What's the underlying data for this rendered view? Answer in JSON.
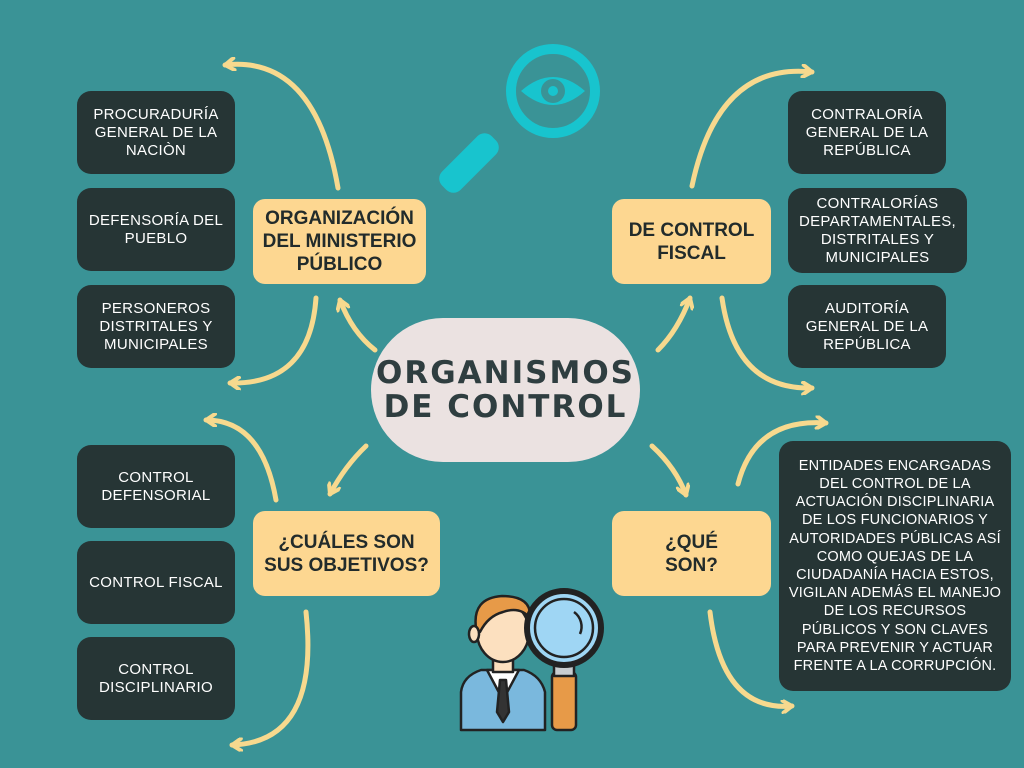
{
  "center": {
    "title": "ORGANISMOS\nDE CONTROL"
  },
  "branches": {
    "ministerio": "ORGANIZACIÓN\nDEL MINISTERIO\nPÚBLICO",
    "fiscal": "DE CONTROL\nFISCAL",
    "objetivos": "¿CUÁLES SON\nSUS OBJETIVOS?",
    "que_son": "¿QUÉ\nSON?"
  },
  "ministerio_items": [
    "PROCURADURÍA\nGENERAL DE LA\nNACIÒN",
    "DEFENSORÍA DEL\nPUEBLO",
    "PERSONEROS\nDISTRITALES Y\nMUNICIPALES"
  ],
  "fiscal_items": [
    "CONTRALORÍA\nGENERAL DE LA\nREPÚBLICA",
    "CONTRALORÍAS\nDEPARTAMENTALES,\nDISTRITALES Y\nMUNICIPALES",
    "AUDITORÍA\nGENERAL DE LA\nREPÚBLICA"
  ],
  "objetivos_items": [
    "CONTROL\nDEFENSORIAL",
    "CONTROL FISCAL",
    "CONTROL\nDISCIPLINARIO"
  ],
  "definicion": "ENTIDADES ENCARGADAS DEL CONTROL DE LA ACTUACIÓN DISCIPLINARIA DE LOS FUNCIONARIOS Y AUTORIDADES PÚBLICAS ASÍ COMO QUEJAS DE LA CIUDADANÍA HACIA ESTOS, VIGILAN ADEMÁS EL MANEJO DE LOS RECURSOS PÚBLICOS Y SON CLAVES PARA PREVENIR Y ACTUAR FRENTE A LA CORRUPCIÓN.",
  "icons": {
    "top": "magnifier-eye-icon",
    "bottom": "inspector-person-icon"
  },
  "colors": {
    "background": "#3a9396",
    "dark_box": "#263535",
    "yellow_box": "#fdd791",
    "center": "#ebe2e1",
    "arrow": "#f7d98e",
    "icon_cyan": "#18c4ce"
  }
}
